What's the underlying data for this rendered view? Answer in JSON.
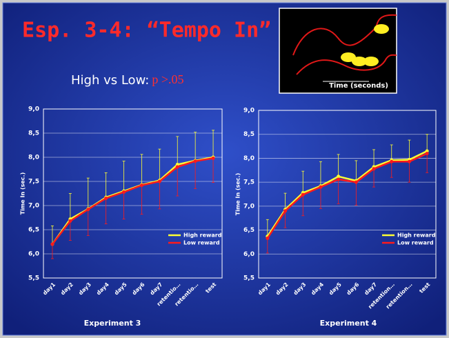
{
  "slide": {
    "title": "Esp. 3-4: “Tempo In”",
    "subtitle": {
      "label": "High vs Low:",
      "stat": "p >.05"
    },
    "inset_label": "Time (seconds)"
  },
  "chart_data": [
    {
      "type": "line",
      "x_label": "Experiment 3",
      "y_label": "Time In (sec.)",
      "categories": [
        "day1",
        "day2",
        "day3",
        "day4",
        "day5",
        "day6",
        "day7",
        "retentio…",
        "retentio…",
        "test"
      ],
      "series": [
        {
          "name": "High reward",
          "color": "#ffff33",
          "values": [
            6.2,
            6.72,
            6.93,
            7.17,
            7.3,
            7.43,
            7.52,
            7.85,
            7.93,
            8.0
          ],
          "errors": [
            0.38,
            0.53,
            0.64,
            0.51,
            0.62,
            0.63,
            0.65,
            0.58,
            0.59,
            0.56
          ]
        },
        {
          "name": "Low reward",
          "color": "#ff1a1a",
          "values": [
            6.2,
            6.68,
            6.92,
            7.15,
            7.28,
            7.42,
            7.5,
            7.8,
            7.92,
            7.98
          ],
          "errors": [
            0.3,
            0.4,
            0.54,
            0.53,
            0.56,
            0.6,
            0.57,
            0.6,
            0.57,
            0.5
          ]
        }
      ],
      "ylim": [
        5.5,
        9.0
      ],
      "yticks": [
        {
          "value": 5.5,
          "label": "5,5"
        },
        {
          "value": 6.0,
          "label": "6,0"
        },
        {
          "value": 6.5,
          "label": "6,5"
        },
        {
          "value": 7.0,
          "label": "7,0"
        },
        {
          "value": 7.5,
          "label": "7,5"
        },
        {
          "value": 8.0,
          "label": "8,0"
        },
        {
          "value": 8.5,
          "label": "8,5"
        },
        {
          "value": 9.0,
          "label": "9,0"
        }
      ],
      "grid": true,
      "legend": "lower-right"
    },
    {
      "type": "line",
      "x_label": "Experiment 4",
      "y_label": "Time In (sec.)",
      "categories": [
        "day1",
        "day2",
        "day3",
        "day4",
        "day5",
        "day6",
        "day7",
        "retention…",
        "retention…",
        "test"
      ],
      "series": [
        {
          "name": "High reward",
          "color": "#ffff33",
          "values": [
            6.37,
            6.93,
            7.28,
            7.42,
            7.62,
            7.53,
            7.82,
            7.96,
            7.97,
            8.15
          ],
          "errors": [
            0.35,
            0.34,
            0.45,
            0.51,
            0.46,
            0.42,
            0.36,
            0.32,
            0.41,
            0.35
          ]
        },
        {
          "name": "Low reward",
          "color": "#ff1a1a",
          "values": [
            6.33,
            6.9,
            7.24,
            7.4,
            7.56,
            7.5,
            7.78,
            7.93,
            7.93,
            8.1
          ],
          "errors": [
            0.31,
            0.35,
            0.44,
            0.45,
            0.51,
            0.48,
            0.38,
            0.33,
            0.43,
            0.4
          ]
        }
      ],
      "ylim": [
        5.5,
        9.0
      ],
      "yticks": [
        {
          "value": 5.5,
          "label": "5,5"
        },
        {
          "value": 6.0,
          "label": "6,0"
        },
        {
          "value": 6.5,
          "label": "6,5"
        },
        {
          "value": 7.0,
          "label": "7,0"
        },
        {
          "value": 7.5,
          "label": "7,5"
        },
        {
          "value": 8.0,
          "label": "8,0"
        },
        {
          "value": 8.5,
          "label": "8,5"
        },
        {
          "value": 9.0,
          "label": "9,0"
        }
      ],
      "grid": true,
      "legend": "lower-right"
    }
  ]
}
